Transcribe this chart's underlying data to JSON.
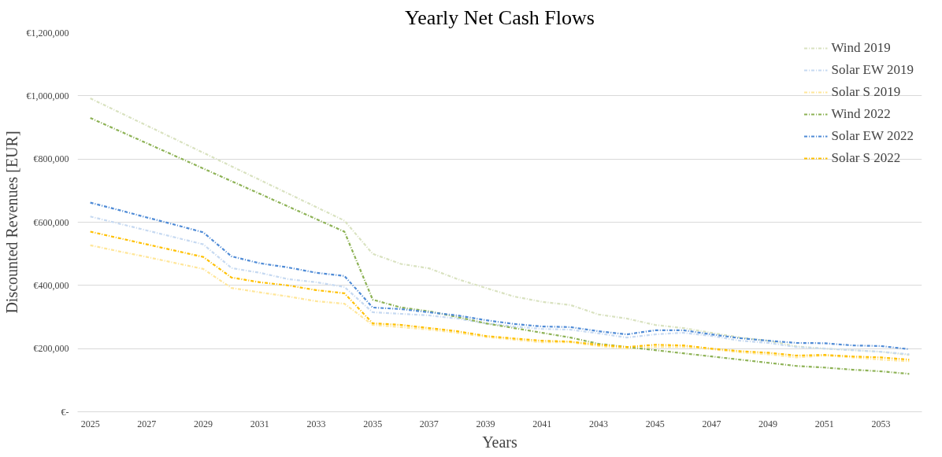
{
  "chart_data": {
    "type": "line",
    "title": "Yearly Net Cash Flows",
    "xlabel": "Years",
    "ylabel": "Discounted Revenues [EUR]",
    "categories": [
      "2025",
      null,
      "2027",
      null,
      "2029",
      null,
      "2031",
      null,
      "2033",
      null,
      "2035",
      null,
      "2037",
      null,
      "2039",
      null,
      "2041",
      null,
      "2043",
      null,
      "2045",
      null,
      "2047",
      null,
      "2049",
      null,
      "2051",
      null,
      "2053",
      null
    ],
    "series": [
      {
        "name": "Wind 2019",
        "color": "#d9e2c0",
        "values": [
          992000,
          949000,
          906000,
          863000,
          820000,
          777000,
          734000,
          691000,
          648000,
          605000,
          500000,
          468000,
          454000,
          420000,
          392000,
          365000,
          348000,
          338000,
          308000,
          295000,
          275000,
          265000,
          250000,
          235000,
          225000,
          207000,
          200000,
          195000,
          190000,
          180000
        ]
      },
      {
        "name": "Solar EW 2019",
        "color": "#c6d9f1",
        "values": [
          618000,
          596000,
          574000,
          552000,
          530000,
          455000,
          440000,
          420000,
          410000,
          395000,
          315000,
          310000,
          305000,
          295000,
          280000,
          270000,
          262000,
          260000,
          248000,
          235000,
          245000,
          250000,
          240000,
          225000,
          218000,
          205000,
          200000,
          195000,
          190000,
          182000
        ]
      },
      {
        "name": "Solar S 2019",
        "color": "#ffe699",
        "values": [
          527000,
          508000,
          490000,
          471000,
          452000,
          392000,
          378000,
          365000,
          350000,
          342000,
          275000,
          268000,
          260000,
          250000,
          237000,
          228000,
          220000,
          220000,
          208000,
          200000,
          205000,
          205000,
          198000,
          188000,
          182000,
          172000,
          178000,
          172000,
          165000,
          160000
        ]
      },
      {
        "name": "Wind 2022",
        "color": "#8db255",
        "values": [
          930000,
          890000,
          850000,
          810000,
          770000,
          730000,
          690000,
          650000,
          610000,
          570000,
          355000,
          330000,
          318000,
          300000,
          280000,
          265000,
          250000,
          235000,
          215000,
          205000,
          195000,
          185000,
          175000,
          165000,
          155000,
          145000,
          140000,
          133000,
          128000,
          120000
        ]
      },
      {
        "name": "Solar EW 2022",
        "color": "#4f8bd6",
        "values": [
          662000,
          639000,
          615000,
          592000,
          568000,
          492000,
          470000,
          457000,
          440000,
          430000,
          330000,
          325000,
          315000,
          305000,
          290000,
          278000,
          270000,
          268000,
          255000,
          245000,
          258000,
          258000,
          245000,
          233000,
          225000,
          218000,
          217000,
          210000,
          208000,
          198000
        ]
      },
      {
        "name": "Solar S 2022",
        "color": "#ffc000",
        "values": [
          570000,
          550000,
          530000,
          510000,
          490000,
          425000,
          410000,
          400000,
          385000,
          375000,
          280000,
          275000,
          265000,
          255000,
          240000,
          232000,
          225000,
          222000,
          212000,
          205000,
          212000,
          210000,
          200000,
          192000,
          187000,
          178000,
          180000,
          175000,
          172000,
          165000
        ]
      }
    ],
    "ylim": [
      0,
      1200000
    ],
    "yticks": [
      {
        "value": 0,
        "label": "€-"
      },
      {
        "value": 200000,
        "label": "€200,000"
      },
      {
        "value": 400000,
        "label": "€400,000"
      },
      {
        "value": 600000,
        "label": "€600,000"
      },
      {
        "value": 800000,
        "label": "€800,000"
      },
      {
        "value": 1000000,
        "label": "€1,000,000"
      },
      {
        "value": 1200000,
        "label": "€1,200,000"
      }
    ],
    "grid": "y",
    "legend": "top right",
    "line_style": "dashed",
    "marker": "none"
  }
}
